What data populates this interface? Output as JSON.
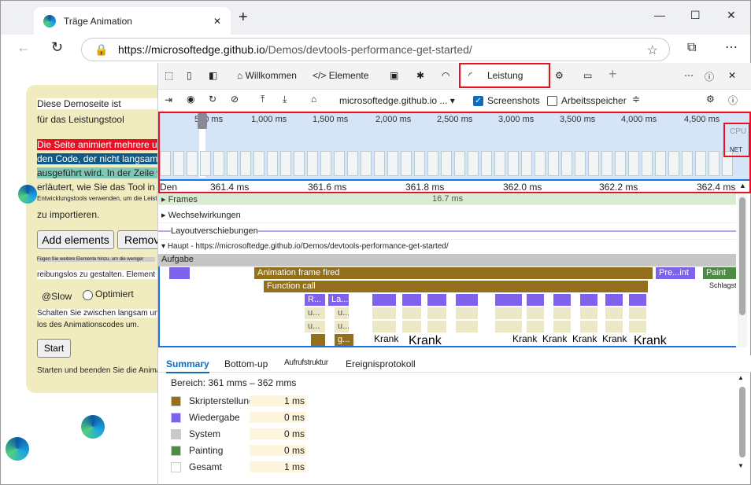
{
  "browser": {
    "tab_title": "Träge Animation",
    "url_host": "https://microsoftedge.github.io",
    "url_path": "/Demos/devtools-performance-get-started/"
  },
  "page": {
    "line1": "Diese Demoseite ist",
    "line2": "für das Leistungstool",
    "line3": "Die Seite animiert mehrere und",
    "line4": "den Code, der nicht langsam",
    "line5": "ausgeführt wird. In der Zeile wird",
    "line6": "erläutert, wie Sie das Tool in Den",
    "line7": "Entwicklungstools verwenden, um die Leistung",
    "line8": "zu importieren.",
    "add_button": "Add elements",
    "remove_button": "Remove",
    "hint1": "Fügen Sie weitere Elemente hinzu, um die weniger",
    "hint2": "reibungslos zu gestalten. Element entfernen:",
    "slow_label": "@Slow",
    "optimized_label": "Optimiert",
    "toggle1": "Schalten Sie zwischen langsam und",
    "toggle2": "los des Animationscodes um.",
    "start_button": "Start",
    "start_hint": "Starten und beenden Sie die Animation."
  },
  "devtools": {
    "tabs": {
      "welcome": "Willkommen",
      "elements": "Elemente",
      "performance": "Leistung"
    },
    "toolbar": {
      "target": "microsoftedge.github.io ...",
      "screenshots": "Screenshots",
      "screenshots_checked": true,
      "memory": "Arbeitsspeicher",
      "memory_checked": false
    },
    "overview": {
      "ticks": [
        "500 ms",
        "1,000 ms",
        "1,500 ms",
        "2,000 ms",
        "2,500 ms",
        "3,000 ms",
        "3,500 ms",
        "4,000 ms",
        "4,500 ms"
      ],
      "cpu": "CPU",
      "net": "NET"
    },
    "ruler": [
      "361.4 ms",
      "361.6 ms",
      "361.8 ms",
      "362.0 ms",
      "362.2 ms",
      "362.4 ms"
    ],
    "tracks": {
      "frames": "Frames",
      "frame_time": "16.7 ms",
      "interactions": "Wechselwirkungen",
      "layout_shifts": "Layoutverschiebungen",
      "main": "Haupt - https://microsoftedge.github.io/Demos/devtools-performance-get-started/",
      "task": "Aufgabe"
    },
    "flame": {
      "anim": "Animation frame fired",
      "pre": "Pre...int",
      "paint": "Paint",
      "func": "Function call",
      "stack": "Schlagstock",
      "r": "R...",
      "lat": "La...t",
      "u": "u...",
      "g": "g...",
      "krank": "Krank"
    },
    "summary": {
      "tabs": [
        "Summary",
        "Bottom-up",
        "Aufrufstruktur",
        "Ereignisprotokoll"
      ],
      "range": "Bereich: 361 mms – 362 mms",
      "rows": [
        {
          "label": "Skripterstellung",
          "value": "1 ms",
          "color": "#94701c"
        },
        {
          "label": "Wiedergabe",
          "value": "0 ms",
          "color": "#7f62ec"
        },
        {
          "label": "System",
          "value": "0 ms",
          "color": "#c8c8c8"
        },
        {
          "label": "Painting",
          "value": "0 ms",
          "color": "#4f8a47"
        },
        {
          "label": "Gesamt",
          "value": "1 ms",
          "color": "#ffffff"
        }
      ]
    }
  }
}
